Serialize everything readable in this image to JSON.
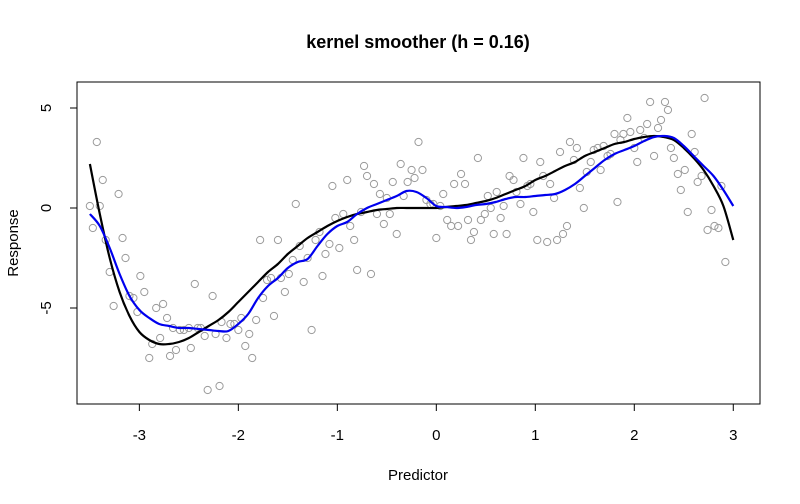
{
  "chart_data": {
    "type": "scatter",
    "title": "kernel smoother (h = 0.16)",
    "xlabel": "Predictor",
    "ylabel": "Response",
    "xlim": [
      -3.63,
      3.27
    ],
    "ylim": [
      -9.8,
      6.3
    ],
    "xticks": [
      "-3",
      "-2",
      "-1",
      "0",
      "1",
      "2",
      "3"
    ],
    "xtick_values": [
      -3,
      -2,
      -1,
      0,
      1,
      2,
      3
    ],
    "yticks": [
      "-5",
      "0",
      "5"
    ],
    "ytick_values": [
      -5,
      0,
      5
    ],
    "grid": false,
    "colors": {
      "points": "#9a9a9a",
      "true_curve": "#000000",
      "smoother": "#0000ee"
    },
    "series": [
      {
        "type": "scatter",
        "points": [
          [
            -3.5,
            0.1
          ],
          [
            -3.47,
            -1.0
          ],
          [
            -3.43,
            3.3
          ],
          [
            -3.4,
            0.1
          ],
          [
            -3.37,
            1.4
          ],
          [
            -3.34,
            -1.6
          ],
          [
            -3.3,
            -3.2
          ],
          [
            -3.26,
            -4.9
          ],
          [
            -3.21,
            0.7
          ],
          [
            -3.17,
            -1.5
          ],
          [
            -3.14,
            -2.5
          ],
          [
            -3.1,
            -4.4
          ],
          [
            -3.06,
            -4.5
          ],
          [
            -3.02,
            -5.2
          ],
          [
            -2.99,
            -3.4
          ],
          [
            -2.95,
            -4.2
          ],
          [
            -2.9,
            -7.5
          ],
          [
            -2.87,
            -6.8
          ],
          [
            -2.83,
            -5.0
          ],
          [
            -2.79,
            -6.5
          ],
          [
            -2.76,
            -4.8
          ],
          [
            -2.72,
            -5.5
          ],
          [
            -2.69,
            -7.4
          ],
          [
            -2.66,
            -6.0
          ],
          [
            -2.63,
            -7.1
          ],
          [
            -2.59,
            -6.1
          ],
          [
            -2.55,
            -6.1
          ],
          [
            -2.5,
            -6.0
          ],
          [
            -2.48,
            -7.0
          ],
          [
            -2.44,
            -3.8
          ],
          [
            -2.41,
            -6.0
          ],
          [
            -2.38,
            -6.0
          ],
          [
            -2.34,
            -6.4
          ],
          [
            -2.31,
            -9.1
          ],
          [
            -2.26,
            -4.4
          ],
          [
            -2.23,
            -6.3
          ],
          [
            -2.19,
            -8.9
          ],
          [
            -2.17,
            -5.7
          ],
          [
            -2.12,
            -6.5
          ],
          [
            -2.08,
            -5.8
          ],
          [
            -2.04,
            -5.8
          ],
          [
            -2.0,
            -6.1
          ],
          [
            -1.97,
            -5.5
          ],
          [
            -1.93,
            -6.9
          ],
          [
            -1.89,
            -6.3
          ],
          [
            -1.86,
            -7.5
          ],
          [
            -1.82,
            -5.6
          ],
          [
            -1.78,
            -1.6
          ],
          [
            -1.75,
            -4.5
          ],
          [
            -1.71,
            -3.6
          ],
          [
            -1.67,
            -3.5
          ],
          [
            -1.64,
            -5.4
          ],
          [
            -1.6,
            -1.6
          ],
          [
            -1.57,
            -3.5
          ],
          [
            -1.53,
            -4.2
          ],
          [
            -1.49,
            -3.3
          ],
          [
            -1.45,
            -2.6
          ],
          [
            -1.42,
            0.2
          ],
          [
            -1.38,
            -1.9
          ],
          [
            -1.34,
            -3.7
          ],
          [
            -1.3,
            -2.5
          ],
          [
            -1.26,
            -6.1
          ],
          [
            -1.22,
            -1.6
          ],
          [
            -1.18,
            -1.2
          ],
          [
            -1.15,
            -3.4
          ],
          [
            -1.12,
            -2.3
          ],
          [
            -1.08,
            -1.8
          ],
          [
            -1.05,
            1.1
          ],
          [
            -1.02,
            -0.5
          ],
          [
            -0.98,
            -2.0
          ],
          [
            -0.94,
            -0.3
          ],
          [
            -0.9,
            1.4
          ],
          [
            -0.87,
            -0.9
          ],
          [
            -0.83,
            -1.6
          ],
          [
            -0.8,
            -3.1
          ],
          [
            -0.76,
            -0.2
          ],
          [
            -0.73,
            2.1
          ],
          [
            -0.7,
            1.6
          ],
          [
            -0.66,
            -3.3
          ],
          [
            -0.63,
            1.2
          ],
          [
            -0.6,
            -0.3
          ],
          [
            -0.57,
            0.7
          ],
          [
            -0.53,
            -0.8
          ],
          [
            -0.5,
            0.5
          ],
          [
            -0.47,
            -0.3
          ],
          [
            -0.44,
            1.3
          ],
          [
            -0.4,
            -1.3
          ],
          [
            -0.36,
            2.2
          ],
          [
            -0.33,
            0.6
          ],
          [
            -0.29,
            1.3
          ],
          [
            -0.25,
            1.9
          ],
          [
            -0.22,
            1.5
          ],
          [
            -0.18,
            3.3
          ],
          [
            -0.14,
            1.9
          ],
          [
            -0.1,
            0.4
          ],
          [
            -0.06,
            0.2
          ],
          [
            -0.03,
            0.2
          ],
          [
            0.0,
            -1.5
          ],
          [
            0.04,
            0.1
          ],
          [
            0.07,
            0.7
          ],
          [
            0.11,
            -0.6
          ],
          [
            0.15,
            -0.9
          ],
          [
            0.18,
            1.2
          ],
          [
            0.22,
            -0.9
          ],
          [
            0.25,
            1.7
          ],
          [
            0.29,
            1.2
          ],
          [
            0.32,
            -0.6
          ],
          [
            0.35,
            -1.6
          ],
          [
            0.38,
            -1.2
          ],
          [
            0.42,
            2.5
          ],
          [
            0.45,
            -0.6
          ],
          [
            0.49,
            -0.3
          ],
          [
            0.52,
            0.6
          ],
          [
            0.55,
            0.0
          ],
          [
            0.58,
            -1.3
          ],
          [
            0.61,
            0.8
          ],
          [
            0.65,
            -0.5
          ],
          [
            0.68,
            0.1
          ],
          [
            0.71,
            -1.3
          ],
          [
            0.74,
            1.6
          ],
          [
            0.78,
            1.4
          ],
          [
            0.81,
            0.8
          ],
          [
            0.85,
            0.2
          ],
          [
            0.88,
            2.5
          ],
          [
            0.92,
            1.1
          ],
          [
            0.95,
            1.2
          ],
          [
            0.98,
            -0.2
          ],
          [
            1.02,
            -1.6
          ],
          [
            1.05,
            2.3
          ],
          [
            1.08,
            1.6
          ],
          [
            1.12,
            -1.7
          ],
          [
            1.15,
            1.2
          ],
          [
            1.19,
            0.5
          ],
          [
            1.22,
            -1.6
          ],
          [
            1.25,
            2.8
          ],
          [
            1.28,
            -1.3
          ],
          [
            1.32,
            -0.9
          ],
          [
            1.35,
            3.3
          ],
          [
            1.39,
            2.4
          ],
          [
            1.42,
            3.0
          ],
          [
            1.45,
            1.0
          ],
          [
            1.49,
            0.0
          ],
          [
            1.52,
            1.8
          ],
          [
            1.56,
            2.3
          ],
          [
            1.59,
            2.9
          ],
          [
            1.63,
            3.0
          ],
          [
            1.66,
            1.9
          ],
          [
            1.69,
            3.1
          ],
          [
            1.73,
            2.6
          ],
          [
            1.76,
            2.7
          ],
          [
            1.8,
            3.7
          ],
          [
            1.83,
            0.3
          ],
          [
            1.86,
            3.4
          ],
          [
            1.89,
            3.7
          ],
          [
            1.93,
            4.5
          ],
          [
            1.96,
            3.8
          ],
          [
            2.0,
            3.0
          ],
          [
            2.03,
            2.3
          ],
          [
            2.06,
            3.9
          ],
          [
            2.1,
            3.5
          ],
          [
            2.13,
            4.2
          ],
          [
            2.16,
            5.3
          ],
          [
            2.2,
            2.6
          ],
          [
            2.24,
            4.0
          ],
          [
            2.27,
            4.4
          ],
          [
            2.31,
            5.3
          ],
          [
            2.34,
            4.9
          ],
          [
            2.37,
            3.0
          ],
          [
            2.4,
            2.5
          ],
          [
            2.44,
            1.7
          ],
          [
            2.47,
            0.9
          ],
          [
            2.51,
            1.9
          ],
          [
            2.54,
            -0.2
          ],
          [
            2.58,
            3.7
          ],
          [
            2.61,
            2.8
          ],
          [
            2.64,
            1.3
          ],
          [
            2.68,
            1.6
          ],
          [
            2.71,
            5.5
          ],
          [
            2.74,
            -1.1
          ],
          [
            2.78,
            -0.1
          ],
          [
            2.81,
            -0.9
          ],
          [
            2.85,
            -1.0
          ],
          [
            2.88,
            1.1
          ],
          [
            2.92,
            -2.7
          ]
        ]
      },
      {
        "type": "line",
        "name": "",
        "x": [
          -3.5,
          -3.4,
          -3.3,
          -3.2,
          -3.1,
          -3.0,
          -2.9,
          -2.8,
          -2.7,
          -2.6,
          -2.5,
          -2.4,
          -2.3,
          -2.2,
          -2.1,
          -2.0,
          -1.9,
          -1.8,
          -1.7,
          -1.6,
          -1.5,
          -1.4,
          -1.3,
          -1.2,
          -1.1,
          -1.0,
          -0.9,
          -0.8,
          -0.7,
          -0.6,
          -0.5,
          -0.4,
          -0.3,
          -0.2,
          -0.1,
          0.0,
          0.1,
          0.2,
          0.3,
          0.4,
          0.5,
          0.6,
          0.7,
          0.8,
          0.9,
          1.0,
          1.1,
          1.2,
          1.3,
          1.4,
          1.5,
          1.6,
          1.7,
          1.8,
          1.9,
          2.0,
          2.1,
          2.2,
          2.3,
          2.4,
          2.5,
          2.6,
          2.7,
          2.8,
          2.9,
          3.0
        ],
        "y": [
          2.2,
          -0.3,
          -2.5,
          -4.2,
          -5.4,
          -6.2,
          -6.6,
          -6.8,
          -6.8,
          -6.7,
          -6.5,
          -6.2,
          -5.9,
          -5.6,
          -5.2,
          -4.7,
          -4.2,
          -3.7,
          -3.2,
          -2.8,
          -2.3,
          -1.9,
          -1.5,
          -1.2,
          -0.9,
          -0.65,
          -0.45,
          -0.3,
          -0.2,
          -0.1,
          -0.05,
          0.0,
          0.0,
          0.0,
          0.0,
          0.0,
          0.05,
          0.1,
          0.15,
          0.25,
          0.35,
          0.5,
          0.7,
          0.9,
          1.1,
          1.4,
          1.6,
          1.85,
          2.1,
          2.3,
          2.6,
          2.8,
          3.0,
          3.2,
          3.3,
          3.45,
          3.55,
          3.6,
          3.55,
          3.4,
          3.0,
          2.5,
          1.9,
          1.1,
          0.1,
          -1.6
        ]
      },
      {
        "type": "line",
        "name": "",
        "x": [
          -3.5,
          -3.4,
          -3.3,
          -3.2,
          -3.1,
          -3.0,
          -2.9,
          -2.8,
          -2.7,
          -2.6,
          -2.5,
          -2.4,
          -2.3,
          -2.2,
          -2.1,
          -2.0,
          -1.9,
          -1.8,
          -1.7,
          -1.6,
          -1.5,
          -1.4,
          -1.3,
          -1.2,
          -1.1,
          -1.0,
          -0.9,
          -0.8,
          -0.7,
          -0.6,
          -0.5,
          -0.4,
          -0.3,
          -0.2,
          -0.1,
          0.0,
          0.1,
          0.2,
          0.3,
          0.4,
          0.5,
          0.6,
          0.7,
          0.8,
          0.9,
          1.0,
          1.1,
          1.2,
          1.3,
          1.4,
          1.5,
          1.6,
          1.7,
          1.8,
          1.9,
          2.0,
          2.1,
          2.2,
          2.3,
          2.4,
          2.5,
          2.6,
          2.7,
          2.8,
          2.9,
          3.0
        ],
        "y": [
          -0.3,
          -0.9,
          -2.0,
          -3.3,
          -4.4,
          -5.1,
          -5.5,
          -5.8,
          -5.9,
          -6.0,
          -6.0,
          -6.05,
          -6.1,
          -6.15,
          -6.15,
          -5.8,
          -5.3,
          -4.5,
          -3.9,
          -3.5,
          -3.0,
          -2.7,
          -2.55,
          -1.9,
          -1.3,
          -0.9,
          -0.7,
          -0.3,
          0.0,
          0.2,
          0.4,
          0.6,
          0.85,
          0.8,
          0.5,
          0.1,
          0.05,
          0.0,
          0.05,
          0.15,
          0.2,
          0.3,
          0.45,
          0.55,
          0.55,
          0.6,
          0.65,
          0.7,
          0.9,
          1.2,
          1.6,
          2.0,
          2.4,
          2.7,
          2.9,
          3.1,
          3.35,
          3.55,
          3.6,
          3.5,
          3.1,
          2.6,
          2.1,
          1.6,
          0.9,
          0.1
        ]
      }
    ]
  }
}
